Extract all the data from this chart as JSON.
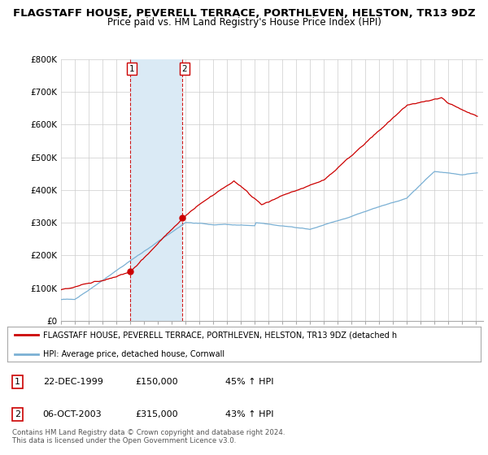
{
  "title": "FLAGSTAFF HOUSE, PEVERELL TERRACE, PORTHLEVEN, HELSTON, TR13 9DZ",
  "subtitle": "Price paid vs. HM Land Registry's House Price Index (HPI)",
  "ylim": [
    0,
    800000
  ],
  "yticks": [
    0,
    100000,
    200000,
    300000,
    400000,
    500000,
    600000,
    700000,
    800000
  ],
  "ytick_labels": [
    "£0",
    "£100K",
    "£200K",
    "£300K",
    "£400K",
    "£500K",
    "£600K",
    "£700K",
    "£800K"
  ],
  "purchases": [
    {
      "year": 1999.97,
      "price": 150000,
      "label": "1"
    },
    {
      "year": 2003.77,
      "price": 315000,
      "label": "2"
    }
  ],
  "purchase_color": "#cc0000",
  "hpi_color": "#7ab0d4",
  "shade_color": "#daeaf5",
  "legend_house_label": "FLAGSTAFF HOUSE, PEVERELL TERRACE, PORTHLEVEN, HELSTON, TR13 9DZ (detached h",
  "legend_hpi_label": "HPI: Average price, detached house, Cornwall",
  "table_rows": [
    {
      "num": "1",
      "date": "22-DEC-1999",
      "price": "£150,000",
      "hpi": "45% ↑ HPI"
    },
    {
      "num": "2",
      "date": "06-OCT-2003",
      "price": "£315,000",
      "hpi": "43% ↑ HPI"
    }
  ],
  "footnote": "Contains HM Land Registry data © Crown copyright and database right 2024.\nThis data is licensed under the Open Government Licence v3.0.",
  "background_color": "#ffffff",
  "plot_bg_color": "#ffffff",
  "grid_color": "#cccccc",
  "title_fontsize": 9.5,
  "subtitle_fontsize": 8.5
}
